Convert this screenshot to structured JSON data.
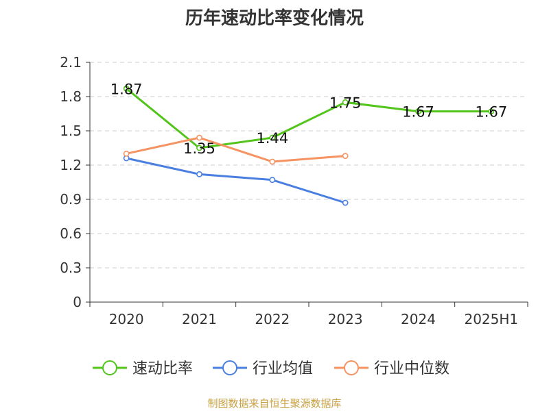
{
  "chart_data": {
    "type": "line",
    "title": "历年速动比率变化情况",
    "categories": [
      "2020",
      "2021",
      "2022",
      "2023",
      "2024",
      "2025H1"
    ],
    "yticks": [
      "0",
      "0.3",
      "0.6",
      "0.9",
      "1.2",
      "1.5",
      "1.8",
      "2.1"
    ],
    "ylim": [
      0,
      2.1
    ],
    "grid": true,
    "legend_position": "bottom",
    "series": [
      {
        "name": "速动比率",
        "color": "#52c41a",
        "values": [
          1.87,
          1.35,
          1.44,
          1.75,
          1.67,
          1.67
        ],
        "labels": [
          "1.87",
          "1.35",
          "1.44",
          "1.75",
          "1.67",
          "1.67"
        ]
      },
      {
        "name": "行业均值",
        "color": "#4a7fe0",
        "values": [
          1.26,
          1.12,
          1.07,
          0.87,
          null,
          null
        ]
      },
      {
        "name": "行业中位数",
        "color": "#f59362",
        "values": [
          1.3,
          1.44,
          1.23,
          1.28,
          null,
          null
        ]
      }
    ]
  },
  "source_text": "制图数据来自恒生聚源数据库"
}
